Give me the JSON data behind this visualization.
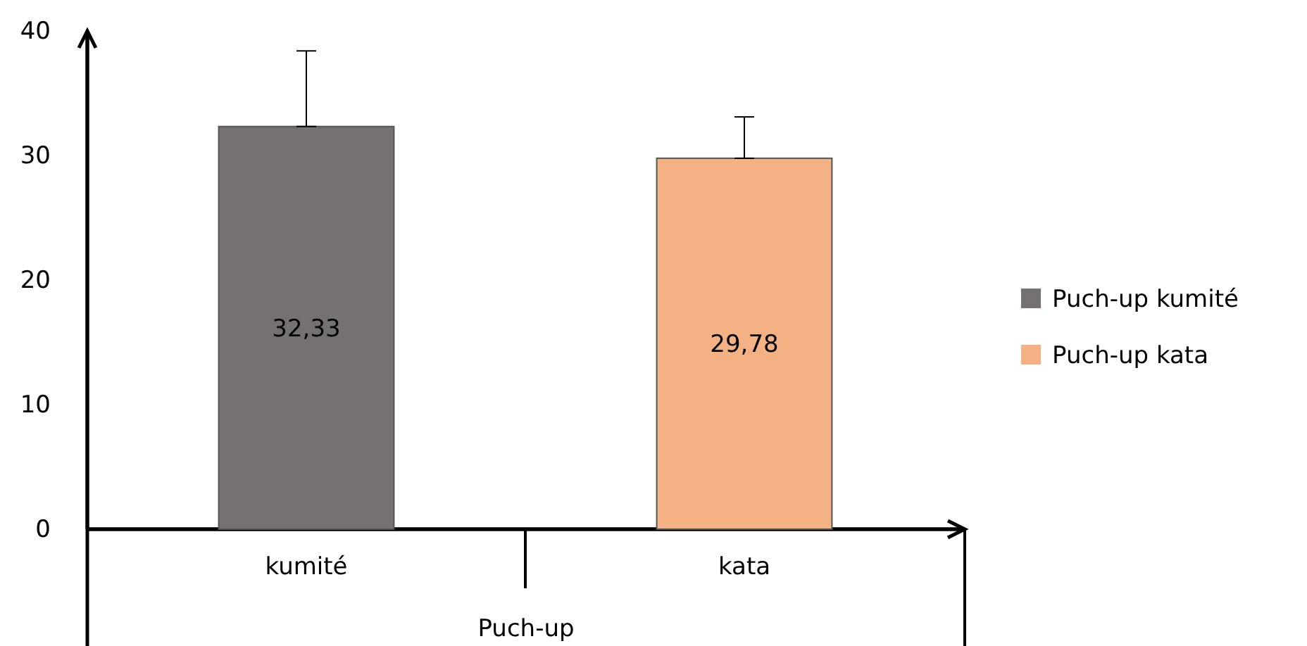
{
  "chart_data": {
    "type": "bar",
    "categories": [
      "kumité",
      "kata"
    ],
    "xlabel": "Puch-up",
    "series": [
      {
        "name": "Puch-up  kumité",
        "color": "#767171",
        "values": [
          32.33,
          null
        ],
        "errors": [
          [
            32.33,
            38.4
          ],
          null
        ],
        "value_labels": [
          "32,33",
          null
        ]
      },
      {
        "name": "Puch-up kata",
        "color": "#f4b183",
        "values": [
          null,
          29.78
        ],
        "errors": [
          null,
          [
            29.78,
            33.1
          ]
        ],
        "value_labels": [
          null,
          "29,78"
        ]
      }
    ],
    "ylim": [
      0,
      40
    ],
    "yticks": [
      0,
      10,
      20,
      30,
      40
    ],
    "grid": false,
    "legend": "right"
  }
}
